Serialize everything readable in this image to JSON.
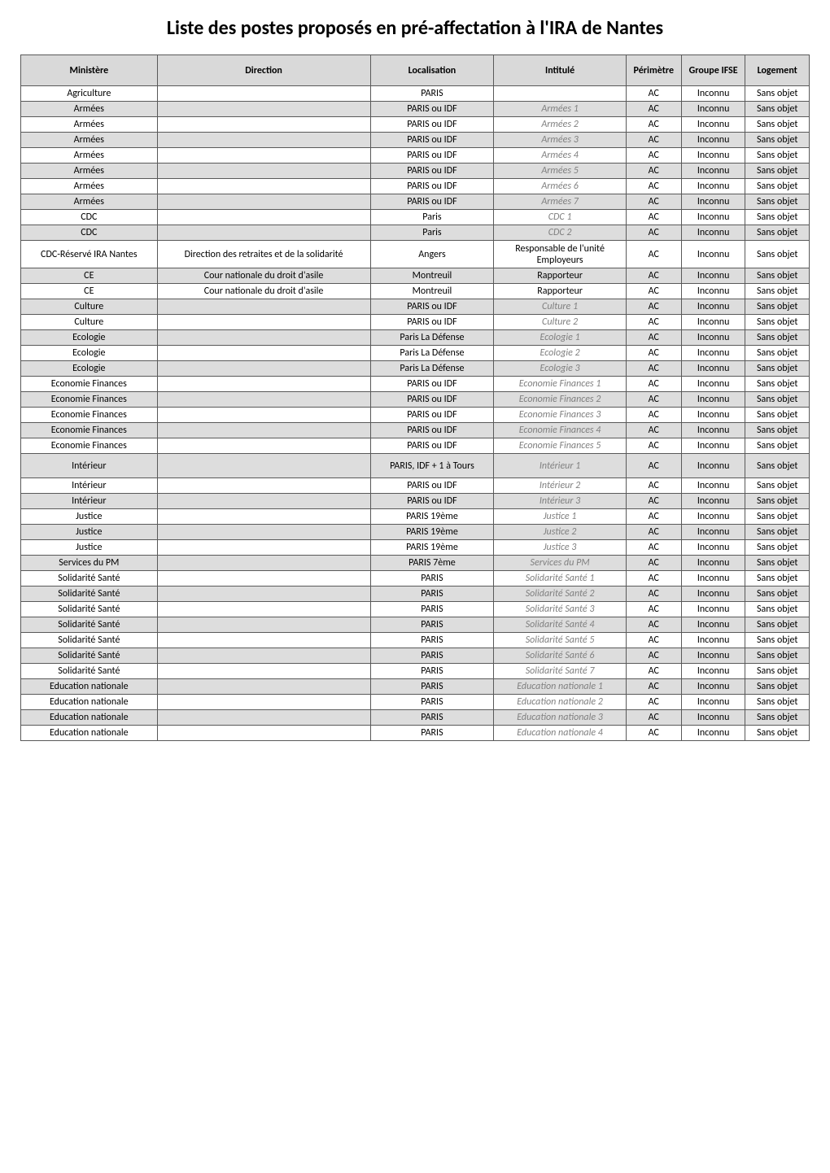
{
  "title": "Liste des postes proposés en pré-affectation à l'IRA de Nantes",
  "headers": {
    "ministere": "Ministère",
    "direction": "Direction",
    "localisation": "Localisation",
    "intitule": "Intitulé",
    "perimetre": "Périmètre",
    "groupe_ifse": "Groupe IFSE",
    "logement": "Logement"
  },
  "rows": [
    {
      "ministere": "Agriculture",
      "direction": "",
      "localisation": "PARIS",
      "intitule": "",
      "intitule_italic": false,
      "perimetre": "AC",
      "groupe": "Inconnu",
      "logement": "Sans objet",
      "alt": false,
      "tall": ""
    },
    {
      "ministere": "Armées",
      "direction": "",
      "localisation": "PARIS ou IDF",
      "intitule": "Armées 1",
      "intitule_italic": true,
      "perimetre": "AC",
      "groupe": "Inconnu",
      "logement": "Sans objet",
      "alt": true,
      "tall": ""
    },
    {
      "ministere": "Armées",
      "direction": "",
      "localisation": "PARIS ou IDF",
      "intitule": "Armées 2",
      "intitule_italic": true,
      "perimetre": "AC",
      "groupe": "Inconnu",
      "logement": "Sans objet",
      "alt": false,
      "tall": ""
    },
    {
      "ministere": "Armées",
      "direction": "",
      "localisation": "PARIS ou IDF",
      "intitule": "Armées 3",
      "intitule_italic": true,
      "perimetre": "AC",
      "groupe": "Inconnu",
      "logement": "Sans objet",
      "alt": true,
      "tall": ""
    },
    {
      "ministere": "Armées",
      "direction": "",
      "localisation": "PARIS ou IDF",
      "intitule": "Armées 4",
      "intitule_italic": true,
      "perimetre": "AC",
      "groupe": "Inconnu",
      "logement": "Sans objet",
      "alt": false,
      "tall": ""
    },
    {
      "ministere": "Armées",
      "direction": "",
      "localisation": "PARIS ou IDF",
      "intitule": "Armées 5",
      "intitule_italic": true,
      "perimetre": "AC",
      "groupe": "Inconnu",
      "logement": "Sans objet",
      "alt": true,
      "tall": ""
    },
    {
      "ministere": "Armées",
      "direction": "",
      "localisation": "PARIS ou IDF",
      "intitule": "Armées 6",
      "intitule_italic": true,
      "perimetre": "AC",
      "groupe": "Inconnu",
      "logement": "Sans objet",
      "alt": false,
      "tall": ""
    },
    {
      "ministere": "Armées",
      "direction": "",
      "localisation": "PARIS ou IDF",
      "intitule": "Armées 7",
      "intitule_italic": true,
      "perimetre": "AC",
      "groupe": "Inconnu",
      "logement": "Sans objet",
      "alt": true,
      "tall": ""
    },
    {
      "ministere": "CDC",
      "direction": "",
      "localisation": "Paris",
      "intitule": "CDC 1",
      "intitule_italic": true,
      "perimetre": "AC",
      "groupe": "Inconnu",
      "logement": "Sans objet",
      "alt": false,
      "tall": ""
    },
    {
      "ministere": "CDC",
      "direction": "",
      "localisation": "Paris",
      "intitule": "CDC 2",
      "intitule_italic": true,
      "perimetre": "AC",
      "groupe": "Inconnu",
      "logement": "Sans objet",
      "alt": true,
      "tall": ""
    },
    {
      "ministere": "CDC-Réservé IRA Nantes",
      "direction": "Direction des retraites et de la solidarité",
      "localisation": "Angers",
      "intitule": "Responsable de l'unité Employeurs",
      "intitule_italic": false,
      "perimetre": "AC",
      "groupe": "Inconnu",
      "logement": "Sans objet",
      "alt": false,
      "tall": "tall"
    },
    {
      "ministere": "CE",
      "direction": "Cour nationale du droit d'asile",
      "localisation": "Montreuil",
      "intitule": "Rapporteur",
      "intitule_italic": false,
      "perimetre": "AC",
      "groupe": "Inconnu",
      "logement": "Sans objet",
      "alt": true,
      "tall": ""
    },
    {
      "ministere": "CE",
      "direction": "Cour nationale du droit d'asile",
      "localisation": "Montreuil",
      "intitule": "Rapporteur",
      "intitule_italic": false,
      "perimetre": "AC",
      "groupe": "Inconnu",
      "logement": "Sans objet",
      "alt": false,
      "tall": ""
    },
    {
      "ministere": "Culture",
      "direction": "",
      "localisation": "PARIS ou IDF",
      "intitule": "Culture 1",
      "intitule_italic": true,
      "perimetre": "AC",
      "groupe": "Inconnu",
      "logement": "Sans objet",
      "alt": true,
      "tall": ""
    },
    {
      "ministere": "Culture",
      "direction": "",
      "localisation": "PARIS ou IDF",
      "intitule": "Culture 2",
      "intitule_italic": true,
      "perimetre": "AC",
      "groupe": "Inconnu",
      "logement": "Sans objet",
      "alt": false,
      "tall": ""
    },
    {
      "ministere": "Ecologie",
      "direction": "",
      "localisation": "Paris La Défense",
      "intitule": "Ecologie 1",
      "intitule_italic": true,
      "perimetre": "AC",
      "groupe": "Inconnu",
      "logement": "Sans objet",
      "alt": true,
      "tall": ""
    },
    {
      "ministere": "Ecologie",
      "direction": "",
      "localisation": "Paris La Défense",
      "intitule": "Ecologie 2",
      "intitule_italic": true,
      "perimetre": "AC",
      "groupe": "Inconnu",
      "logement": "Sans objet",
      "alt": false,
      "tall": ""
    },
    {
      "ministere": "Ecologie",
      "direction": "",
      "localisation": "Paris La Défense",
      "intitule": "Ecologie 3",
      "intitule_italic": true,
      "perimetre": "AC",
      "groupe": "Inconnu",
      "logement": "Sans objet",
      "alt": true,
      "tall": ""
    },
    {
      "ministere": "Economie Finances",
      "direction": "",
      "localisation": "PARIS ou IDF",
      "intitule": "Economie Finances 1",
      "intitule_italic": true,
      "perimetre": "AC",
      "groupe": "Inconnu",
      "logement": "Sans objet",
      "alt": false,
      "tall": ""
    },
    {
      "ministere": "Economie Finances",
      "direction": "",
      "localisation": "PARIS ou IDF",
      "intitule": "Economie Finances 2",
      "intitule_italic": true,
      "perimetre": "AC",
      "groupe": "Inconnu",
      "logement": "Sans objet",
      "alt": true,
      "tall": ""
    },
    {
      "ministere": "Economie Finances",
      "direction": "",
      "localisation": "PARIS ou IDF",
      "intitule": "Economie Finances 3",
      "intitule_italic": true,
      "perimetre": "AC",
      "groupe": "Inconnu",
      "logement": "Sans objet",
      "alt": false,
      "tall": ""
    },
    {
      "ministere": "Economie Finances",
      "direction": "",
      "localisation": "PARIS ou IDF",
      "intitule": "Economie Finances 4",
      "intitule_italic": true,
      "perimetre": "AC",
      "groupe": "Inconnu",
      "logement": "Sans objet",
      "alt": true,
      "tall": ""
    },
    {
      "ministere": "Economie Finances",
      "direction": "",
      "localisation": "PARIS ou IDF",
      "intitule": "Economie Finances 5",
      "intitule_italic": true,
      "perimetre": "AC",
      "groupe": "Inconnu",
      "logement": "Sans objet",
      "alt": false,
      "tall": ""
    },
    {
      "ministere": "Intérieur",
      "direction": "",
      "localisation": "PARIS, IDF + 1 à Tours",
      "intitule": "Intérieur 1",
      "intitule_italic": true,
      "perimetre": "AC",
      "groupe": "Inconnu",
      "logement": "Sans objet",
      "alt": true,
      "tall": "medtall"
    },
    {
      "ministere": "Intérieur",
      "direction": "",
      "localisation": "PARIS ou IDF",
      "intitule": "Intérieur 2",
      "intitule_italic": true,
      "perimetre": "AC",
      "groupe": "Inconnu",
      "logement": "Sans objet",
      "alt": false,
      "tall": ""
    },
    {
      "ministere": "Intérieur",
      "direction": "",
      "localisation": "PARIS ou IDF",
      "intitule": "Intérieur 3",
      "intitule_italic": true,
      "perimetre": "AC",
      "groupe": "Inconnu",
      "logement": "Sans objet",
      "alt": true,
      "tall": ""
    },
    {
      "ministere": "Justice",
      "direction": "",
      "localisation": "PARIS 19ème",
      "intitule": "Justice 1",
      "intitule_italic": true,
      "perimetre": "AC",
      "groupe": "Inconnu",
      "logement": "Sans objet",
      "alt": false,
      "tall": ""
    },
    {
      "ministere": "Justice",
      "direction": "",
      "localisation": "PARIS 19ème",
      "intitule": "Justice 2",
      "intitule_italic": true,
      "perimetre": "AC",
      "groupe": "Inconnu",
      "logement": "Sans objet",
      "alt": true,
      "tall": ""
    },
    {
      "ministere": "Justice",
      "direction": "",
      "localisation": "PARIS 19ème",
      "intitule": "Justice 3",
      "intitule_italic": true,
      "perimetre": "AC",
      "groupe": "Inconnu",
      "logement": "Sans objet",
      "alt": false,
      "tall": ""
    },
    {
      "ministere": "Services du PM",
      "direction": "",
      "localisation": "PARIS 7ème",
      "intitule": "Services du PM",
      "intitule_italic": true,
      "perimetre": "AC",
      "groupe": "Inconnu",
      "logement": "Sans objet",
      "alt": true,
      "tall": ""
    },
    {
      "ministere": "Solidarité Santé",
      "direction": "",
      "localisation": "PARIS",
      "intitule": "Solidarité Santé 1",
      "intitule_italic": true,
      "perimetre": "AC",
      "groupe": "Inconnu",
      "logement": "Sans objet",
      "alt": false,
      "tall": ""
    },
    {
      "ministere": "Solidarité Santé",
      "direction": "",
      "localisation": "PARIS",
      "intitule": "Solidarité Santé 2",
      "intitule_italic": true,
      "perimetre": "AC",
      "groupe": "Inconnu",
      "logement": "Sans objet",
      "alt": true,
      "tall": ""
    },
    {
      "ministere": "Solidarité Santé",
      "direction": "",
      "localisation": "PARIS",
      "intitule": "Solidarité Santé 3",
      "intitule_italic": true,
      "perimetre": "AC",
      "groupe": "Inconnu",
      "logement": "Sans objet",
      "alt": false,
      "tall": ""
    },
    {
      "ministere": "Solidarité Santé",
      "direction": "",
      "localisation": "PARIS",
      "intitule": "Solidarité Santé 4",
      "intitule_italic": true,
      "perimetre": "AC",
      "groupe": "Inconnu",
      "logement": "Sans objet",
      "alt": true,
      "tall": ""
    },
    {
      "ministere": "Solidarité Santé",
      "direction": "",
      "localisation": "PARIS",
      "intitule": "Solidarité Santé 5",
      "intitule_italic": true,
      "perimetre": "AC",
      "groupe": "Inconnu",
      "logement": "Sans objet",
      "alt": false,
      "tall": ""
    },
    {
      "ministere": "Solidarité Santé",
      "direction": "",
      "localisation": "PARIS",
      "intitule": "Solidarité Santé 6",
      "intitule_italic": true,
      "perimetre": "AC",
      "groupe": "Inconnu",
      "logement": "Sans objet",
      "alt": true,
      "tall": ""
    },
    {
      "ministere": "Solidarité Santé",
      "direction": "",
      "localisation": "PARIS",
      "intitule": "Solidarité Santé 7",
      "intitule_italic": true,
      "perimetre": "AC",
      "groupe": "Inconnu",
      "logement": "Sans objet",
      "alt": false,
      "tall": ""
    },
    {
      "ministere": "Education nationale",
      "direction": "",
      "localisation": "PARIS",
      "intitule": "Education nationale 1",
      "intitule_italic": true,
      "perimetre": "AC",
      "groupe": "Inconnu",
      "logement": "Sans objet",
      "alt": true,
      "tall": ""
    },
    {
      "ministere": "Education nationale",
      "direction": "",
      "localisation": "PARIS",
      "intitule": "Education nationale 2",
      "intitule_italic": true,
      "perimetre": "AC",
      "groupe": "Inconnu",
      "logement": "Sans objet",
      "alt": false,
      "tall": ""
    },
    {
      "ministere": "Education nationale",
      "direction": "",
      "localisation": "PARIS",
      "intitule": "Education nationale 3",
      "intitule_italic": true,
      "perimetre": "AC",
      "groupe": "Inconnu",
      "logement": "Sans objet",
      "alt": true,
      "tall": ""
    },
    {
      "ministere": "Education nationale",
      "direction": "",
      "localisation": "PARIS",
      "intitule": "Education nationale 4",
      "intitule_italic": true,
      "perimetre": "AC",
      "groupe": "Inconnu",
      "logement": "Sans objet",
      "alt": false,
      "tall": ""
    }
  ]
}
